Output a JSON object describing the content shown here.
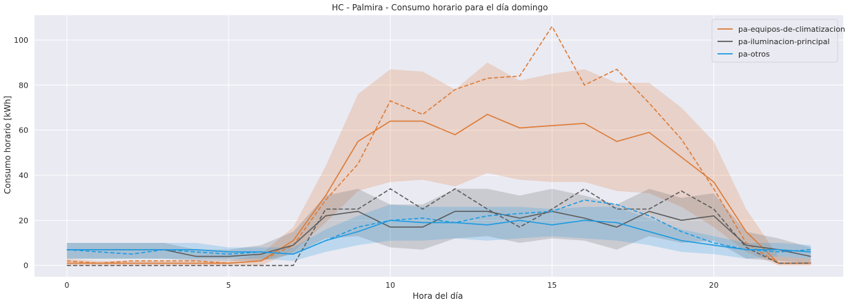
{
  "chart_data": {
    "type": "line",
    "title": "HC - Palmira - Consumo horario para el día domingo",
    "xlabel": "Hora del día",
    "ylabel": "Consumo horario [kWh]",
    "xlim": [
      -1,
      24
    ],
    "ylim": [
      -5,
      111
    ],
    "xticks": [
      0,
      5,
      10,
      15,
      20
    ],
    "yticks": [
      0,
      20,
      40,
      60,
      80,
      100
    ],
    "grid": true,
    "legend_position": "top-right",
    "x": [
      0,
      1,
      2,
      3,
      4,
      5,
      6,
      7,
      8,
      9,
      10,
      11,
      12,
      13,
      14,
      15,
      16,
      17,
      18,
      19,
      20,
      21,
      22,
      23
    ],
    "series": [
      {
        "name": "pa-equipos-de-climatizacion",
        "color": "#dd7a35",
        "mean": [
          1,
          1,
          1,
          1,
          1,
          1,
          2,
          11,
          31,
          55,
          64,
          64,
          58,
          67,
          61,
          62,
          63,
          55,
          59,
          48,
          37,
          15,
          1,
          1
        ],
        "lower": [
          0,
          0,
          0,
          0,
          0,
          0,
          0,
          6,
          19,
          33,
          37,
          38,
          35,
          41,
          38,
          37,
          37,
          33,
          32,
          26,
          17,
          6,
          0,
          0
        ],
        "upper": [
          3,
          2,
          2,
          2,
          2,
          2,
          5,
          17,
          44,
          76,
          87,
          86,
          78,
          90,
          82,
          85,
          87,
          81,
          81,
          70,
          55,
          25,
          4,
          3
        ],
        "dashed": [
          2,
          1,
          2,
          2,
          2,
          1,
          2,
          9,
          29,
          45,
          73,
          67,
          78,
          83,
          84,
          106,
          80,
          87,
          72,
          56,
          34,
          10,
          1,
          1
        ]
      },
      {
        "name": "pa-iluminacion-principal",
        "color": "#5c5c5c",
        "mean": [
          7,
          7,
          7,
          7,
          4,
          4,
          5,
          9,
          22,
          24,
          17,
          17,
          24,
          24,
          21,
          24,
          21,
          17,
          24,
          20,
          22,
          9,
          7,
          4
        ],
        "lower": [
          3,
          3,
          3,
          3,
          2,
          2,
          2,
          5,
          12,
          13,
          8,
          7,
          12,
          13,
          10,
          12,
          11,
          7,
          13,
          10,
          11,
          3,
          2,
          1
        ],
        "upper": [
          10,
          10,
          10,
          10,
          7,
          7,
          9,
          15,
          31,
          34,
          27,
          27,
          34,
          34,
          31,
          34,
          31,
          27,
          34,
          30,
          32,
          15,
          12,
          8
        ],
        "dashed": [
          0,
          0,
          0,
          0,
          0,
          0,
          0,
          0,
          25,
          25,
          34,
          25,
          34,
          25,
          17,
          25,
          34,
          25,
          25,
          33,
          25,
          8,
          1,
          1
        ]
      },
      {
        "name": "pa-otros",
        "color": "#1e9ae0",
        "mean": [
          7,
          7,
          7,
          7,
          7,
          6,
          6,
          5,
          11,
          15,
          20,
          19,
          19,
          18,
          20,
          18,
          20,
          19,
          15,
          11,
          9,
          7,
          7,
          6
        ],
        "lower": [
          3,
          3,
          3,
          3,
          3,
          3,
          3,
          2,
          6,
          9,
          11,
          11,
          12,
          11,
          12,
          13,
          12,
          11,
          9,
          6,
          5,
          3,
          4,
          3
        ],
        "upper": [
          10,
          10,
          10,
          10,
          10,
          8,
          8,
          8,
          16,
          22,
          27,
          26,
          26,
          26,
          26,
          25,
          26,
          26,
          21,
          16,
          13,
          10,
          10,
          9
        ],
        "dashed": [
          7,
          6,
          5,
          7,
          6,
          5,
          6,
          5,
          11,
          17,
          20,
          21,
          19,
          22,
          23,
          24,
          29,
          27,
          22,
          15,
          10,
          7,
          6,
          7
        ]
      }
    ]
  }
}
